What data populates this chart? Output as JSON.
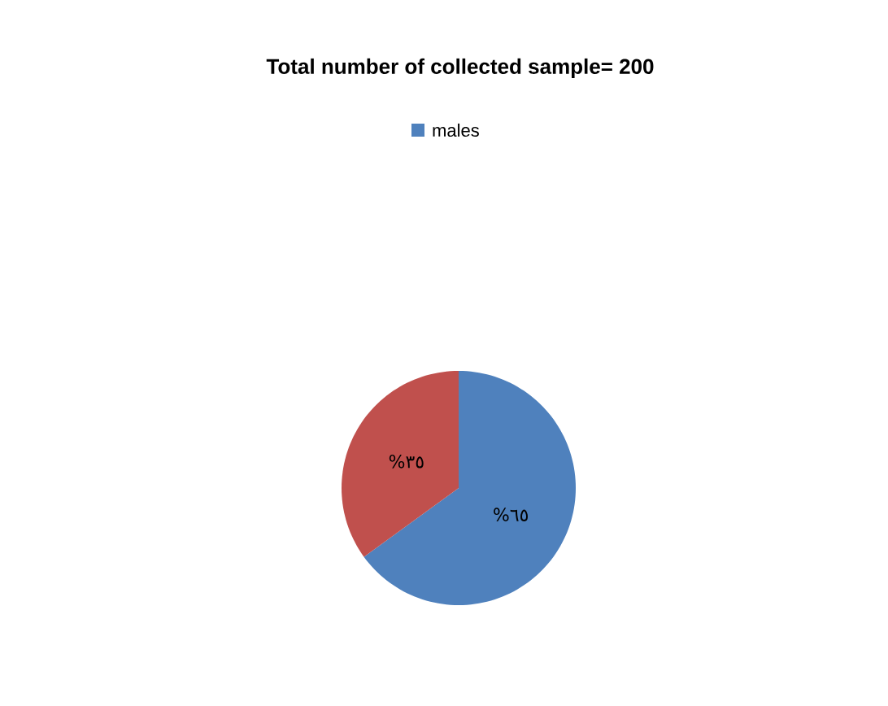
{
  "chart_data": {
    "type": "pie",
    "title": "Total number of collected sample= 200",
    "categories": [
      "males",
      null
    ],
    "values": [
      65,
      35
    ],
    "colors": [
      "#4f81bd",
      "#c0504d"
    ],
    "value_labels": [
      "%٦٥",
      "%٣٥"
    ],
    "legend": "top"
  }
}
